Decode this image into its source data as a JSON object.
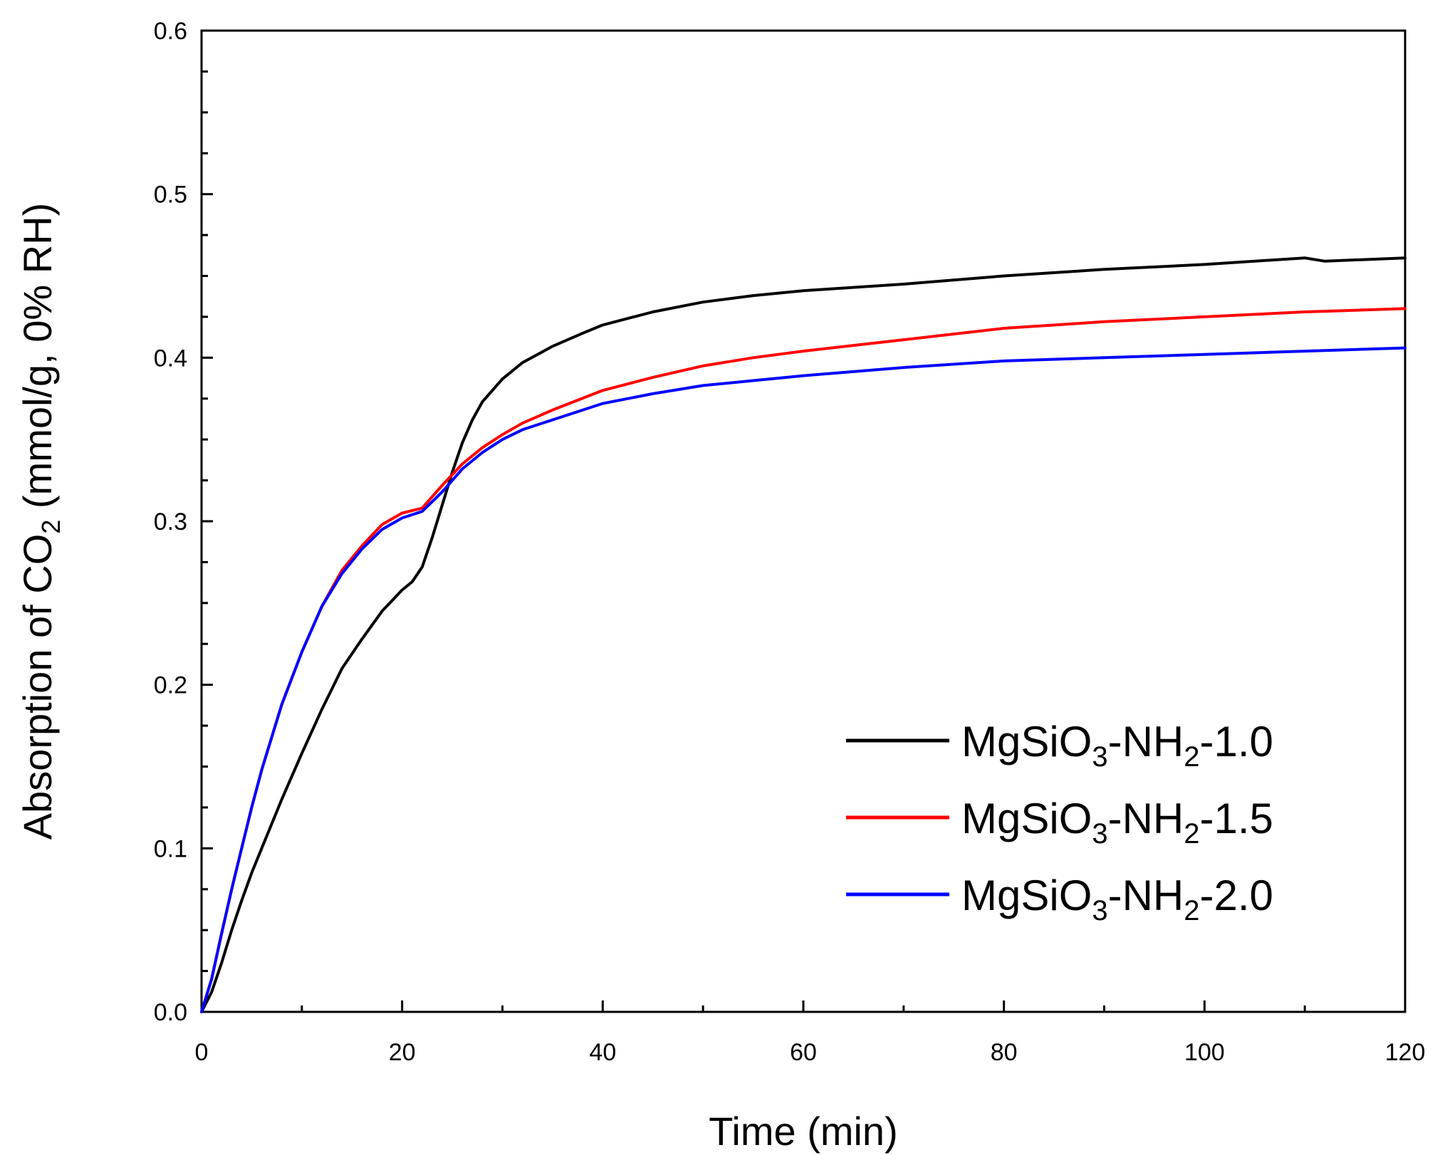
{
  "chart_data": {
    "type": "line",
    "xlabel": "Time (min)",
    "ylabel": "Absorption of CO₂ (mmol/g, 0% RH)",
    "ylabel_parts": {
      "pre": "Absorption of CO",
      "sub": "2",
      "post": " (mmol/g, 0% RH)"
    },
    "xlim": [
      0,
      120
    ],
    "ylim": [
      0,
      0.6
    ],
    "x_ticks": [
      "0",
      "20",
      "40",
      "60",
      "80",
      "100",
      "120"
    ],
    "y_ticks": [
      "0.0",
      "0.1",
      "0.2",
      "0.3",
      "0.4",
      "0.5",
      "0.6"
    ],
    "grid": false,
    "legend_position": "bottom-right",
    "series": [
      {
        "name": "MgSiO3-NH2-1.0",
        "name_parts": {
          "a": "MgSiO",
          "s1": "3",
          "b": "-NH",
          "s2": "2",
          "c": "-1.0"
        },
        "color": "#000000",
        "points": [
          [
            0,
            0
          ],
          [
            1,
            0.012
          ],
          [
            2,
            0.03
          ],
          [
            3,
            0.05
          ],
          [
            4,
            0.068
          ],
          [
            5,
            0.085
          ],
          [
            6,
            0.1
          ],
          [
            8,
            0.13
          ],
          [
            10,
            0.158
          ],
          [
            12,
            0.185
          ],
          [
            14,
            0.21
          ],
          [
            16,
            0.228
          ],
          [
            18,
            0.245
          ],
          [
            20,
            0.258
          ],
          [
            21,
            0.263
          ],
          [
            22,
            0.272
          ],
          [
            23,
            0.29
          ],
          [
            24,
            0.31
          ],
          [
            25,
            0.33
          ],
          [
            26,
            0.348
          ],
          [
            27,
            0.362
          ],
          [
            28,
            0.373
          ],
          [
            30,
            0.387
          ],
          [
            32,
            0.397
          ],
          [
            35,
            0.407
          ],
          [
            38,
            0.415
          ],
          [
            40,
            0.42
          ],
          [
            45,
            0.428
          ],
          [
            50,
            0.434
          ],
          [
            55,
            0.438
          ],
          [
            60,
            0.441
          ],
          [
            70,
            0.445
          ],
          [
            80,
            0.45
          ],
          [
            90,
            0.454
          ],
          [
            100,
            0.457
          ],
          [
            110,
            0.461
          ],
          [
            112,
            0.459
          ],
          [
            120,
            0.461
          ]
        ]
      },
      {
        "name": "MgSiO3-NH2-1.5",
        "name_parts": {
          "a": "MgSiO",
          "s1": "3",
          "b": "-NH",
          "s2": "2",
          "c": "-1.5"
        },
        "color": "#ff0000",
        "points": [
          [
            0,
            0
          ],
          [
            1,
            0.02
          ],
          [
            2,
            0.048
          ],
          [
            3,
            0.075
          ],
          [
            4,
            0.1
          ],
          [
            5,
            0.125
          ],
          [
            6,
            0.148
          ],
          [
            8,
            0.188
          ],
          [
            10,
            0.22
          ],
          [
            12,
            0.248
          ],
          [
            14,
            0.27
          ],
          [
            16,
            0.285
          ],
          [
            18,
            0.298
          ],
          [
            20,
            0.305
          ],
          [
            22,
            0.308
          ],
          [
            24,
            0.322
          ],
          [
            26,
            0.335
          ],
          [
            28,
            0.345
          ],
          [
            30,
            0.353
          ],
          [
            32,
            0.36
          ],
          [
            35,
            0.368
          ],
          [
            40,
            0.38
          ],
          [
            45,
            0.388
          ],
          [
            50,
            0.395
          ],
          [
            55,
            0.4
          ],
          [
            60,
            0.404
          ],
          [
            70,
            0.411
          ],
          [
            80,
            0.418
          ],
          [
            90,
            0.422
          ],
          [
            100,
            0.425
          ],
          [
            110,
            0.428
          ],
          [
            120,
            0.43
          ]
        ]
      },
      {
        "name": "MgSiO3-NH2-2.0",
        "name_parts": {
          "a": "MgSiO",
          "s1": "3",
          "b": "-NH",
          "s2": "2",
          "c": "-2.0"
        },
        "color": "#0000ff",
        "points": [
          [
            0,
            0
          ],
          [
            1,
            0.02
          ],
          [
            2,
            0.048
          ],
          [
            3,
            0.075
          ],
          [
            4,
            0.1
          ],
          [
            5,
            0.125
          ],
          [
            6,
            0.148
          ],
          [
            8,
            0.188
          ],
          [
            10,
            0.22
          ],
          [
            12,
            0.248
          ],
          [
            14,
            0.268
          ],
          [
            16,
            0.283
          ],
          [
            18,
            0.295
          ],
          [
            20,
            0.302
          ],
          [
            22,
            0.306
          ],
          [
            24,
            0.318
          ],
          [
            26,
            0.332
          ],
          [
            28,
            0.342
          ],
          [
            30,
            0.35
          ],
          [
            32,
            0.356
          ],
          [
            35,
            0.362
          ],
          [
            40,
            0.372
          ],
          [
            45,
            0.378
          ],
          [
            50,
            0.383
          ],
          [
            55,
            0.386
          ],
          [
            60,
            0.389
          ],
          [
            70,
            0.394
          ],
          [
            80,
            0.398
          ],
          [
            90,
            0.4
          ],
          [
            100,
            0.402
          ],
          [
            110,
            0.404
          ],
          [
            120,
            0.406
          ]
        ]
      }
    ]
  }
}
